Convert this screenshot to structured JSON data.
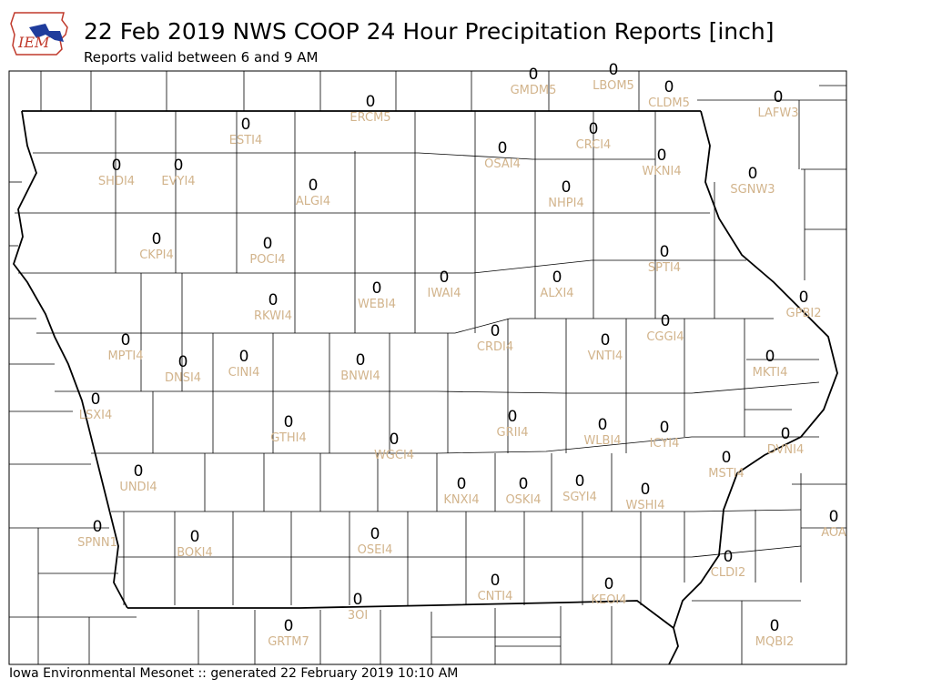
{
  "header": {
    "title": "22 Feb 2019 NWS COOP 24 Hour Precipitation Reports [inch]",
    "subtitle": "Reports valid between 6 and 9 AM"
  },
  "logo": {
    "text": "IEM"
  },
  "footer": {
    "text": "Iowa Environmental Mesonet :: generated 22 February 2019 10:10 AM"
  },
  "colors": {
    "value": "#000000",
    "station": "#d2b48c",
    "border": "#000000"
  },
  "stations": [
    {
      "id": "GMDM5",
      "value": "0"
    },
    {
      "id": "LBOM5",
      "value": "0"
    },
    {
      "id": "CLDM5",
      "value": "0"
    },
    {
      "id": "LAFW3",
      "value": "0"
    },
    {
      "id": "ERCM5",
      "value": "0"
    },
    {
      "id": "ESTI4",
      "value": "0"
    },
    {
      "id": "CRCI4",
      "value": "0"
    },
    {
      "id": "OSAI4",
      "value": "0"
    },
    {
      "id": "WKNI4",
      "value": "0"
    },
    {
      "id": "SHDI4",
      "value": "0"
    },
    {
      "id": "EVYI4",
      "value": "0"
    },
    {
      "id": "SGNW3",
      "value": "0"
    },
    {
      "id": "ALGI4",
      "value": "0"
    },
    {
      "id": "NHPI4",
      "value": "0"
    },
    {
      "id": "CKPI4",
      "value": "0"
    },
    {
      "id": "POCI4",
      "value": "0"
    },
    {
      "id": "SPTI4",
      "value": "0"
    },
    {
      "id": "IWAI4",
      "value": "0"
    },
    {
      "id": "ALXI4",
      "value": "0"
    },
    {
      "id": "WEBI4",
      "value": "0"
    },
    {
      "id": "RKWI4",
      "value": "0"
    },
    {
      "id": "GPBI2",
      "value": "0"
    },
    {
      "id": "CGGI4",
      "value": "0"
    },
    {
      "id": "CRDI4",
      "value": "0"
    },
    {
      "id": "MPTI4",
      "value": "0"
    },
    {
      "id": "VNTI4",
      "value": "0"
    },
    {
      "id": "CINI4",
      "value": "0"
    },
    {
      "id": "DNSI4",
      "value": "0"
    },
    {
      "id": "BNWI4",
      "value": "0"
    },
    {
      "id": "MKTI4",
      "value": "0"
    },
    {
      "id": "LSXI4",
      "value": "0"
    },
    {
      "id": "GRII4",
      "value": "0"
    },
    {
      "id": "GTHI4",
      "value": "0"
    },
    {
      "id": "WLBI4",
      "value": "0"
    },
    {
      "id": "ICYI4",
      "value": "0"
    },
    {
      "id": "DVNI4",
      "value": "0"
    },
    {
      "id": "WGCI4",
      "value": "0"
    },
    {
      "id": "MSTI4",
      "value": "0"
    },
    {
      "id": "UNDI4",
      "value": "0"
    },
    {
      "id": "SGYI4",
      "value": "0"
    },
    {
      "id": "KNXI4",
      "value": "0"
    },
    {
      "id": "OSKI4",
      "value": "0"
    },
    {
      "id": "WSHI4",
      "value": "0"
    },
    {
      "id": "AOA",
      "value": "0"
    },
    {
      "id": "SPNN1",
      "value": "0"
    },
    {
      "id": "BOKI4",
      "value": "0"
    },
    {
      "id": "OSEI4",
      "value": "0"
    },
    {
      "id": "CLDI2",
      "value": "0"
    },
    {
      "id": "CNTI4",
      "value": "0"
    },
    {
      "id": "KEOI4",
      "value": "0"
    },
    {
      "id": "3OI",
      "value": "0"
    },
    {
      "id": "GRTM7",
      "value": "0"
    },
    {
      "id": "MQBI2",
      "value": "0"
    }
  ]
}
